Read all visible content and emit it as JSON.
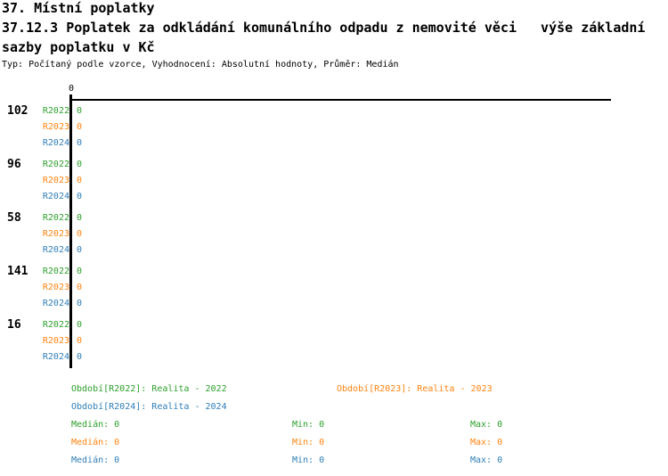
{
  "header": {
    "title": "37. Místní poplatky",
    "subtitle_line1": "37.12.3 Poplatek za odkládání komunálního odpadu z nemovité věci   výše základní",
    "subtitle_line2": "sazby poplatku v Kč",
    "type_line": "Typ: Počítaný podle vzorce, Vyhodnocení: Absolutní hodnoty, Průměr: Medián"
  },
  "colors": {
    "axis": "#000000",
    "r2022": "#2CA02C",
    "r2023": "#FF8310",
    "r2024": "#2E7EB8"
  },
  "stats_labels": {
    "median": "Medián",
    "min": "Min",
    "max": "Max"
  },
  "chart_data": {
    "type": "bar",
    "orientation": "horizontal",
    "title": "37.12.3 Poplatek za odkládání komunálního odpadu z nemovité věci - výše základní sazby poplatku v Kč",
    "grid": false,
    "legend_position": "bottom",
    "x_axis": {
      "min": 0,
      "tick_labels": [
        "0"
      ]
    },
    "categories": [
      "102",
      "96",
      "58",
      "141",
      "16"
    ],
    "series": [
      {
        "name": "R2022",
        "legend": "Období[R2022]: Realita - 2022",
        "color_key": "r2022",
        "values": [
          0,
          0,
          0,
          0,
          0
        ],
        "value_labels": [
          "0",
          "0",
          "0",
          "0",
          "0"
        ],
        "stats": {
          "median": "0",
          "min": "0",
          "max": "0"
        }
      },
      {
        "name": "R2023",
        "legend": "Období[R2023]: Realita - 2023",
        "color_key": "r2023",
        "values": [
          0,
          0,
          0,
          0,
          0
        ],
        "value_labels": [
          "0",
          "0",
          "0",
          "0",
          "0"
        ],
        "stats": {
          "median": "0",
          "min": "0",
          "max": "0"
        }
      },
      {
        "name": "R2024",
        "legend": "Období[R2024]: Realita - 2024",
        "color_key": "r2024",
        "values": [
          0,
          0,
          0,
          0,
          0
        ],
        "value_labels": [
          "0",
          "0",
          "0",
          "0",
          "0"
        ],
        "stats": {
          "median": "0",
          "min": "0",
          "max": "0"
        }
      }
    ]
  }
}
